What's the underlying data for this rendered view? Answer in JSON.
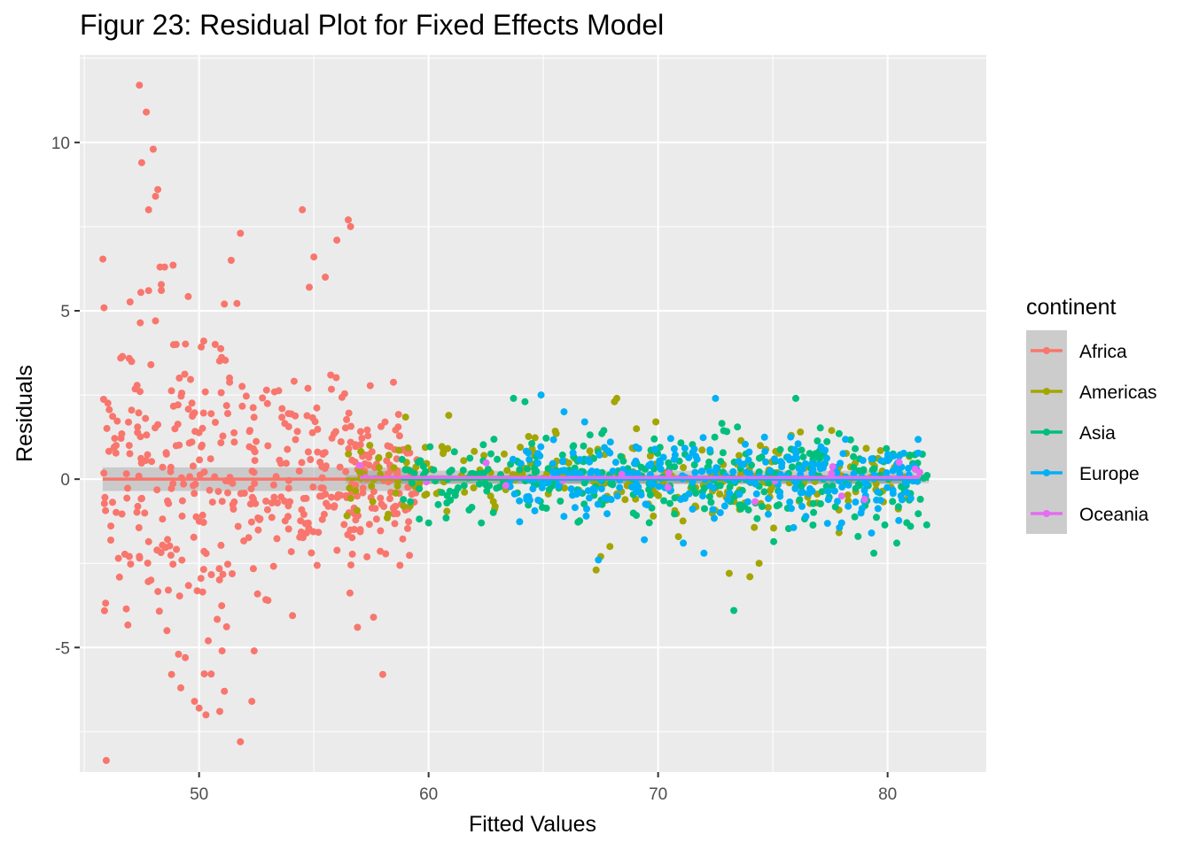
{
  "chart_data": {
    "type": "scatter",
    "title": "Figur 23: Residual Plot for Fixed Effects Model",
    "xlabel": "Fitted Values",
    "ylabel": "Residuals",
    "xlim": [
      44.8,
      84.3
    ],
    "ylim": [
      -8.7,
      12.6
    ],
    "x_ticks": [
      50,
      60,
      70,
      80
    ],
    "y_ticks": [
      -5,
      0,
      5,
      10
    ],
    "grid": true,
    "legend_position": "right",
    "legend_title": "continent",
    "smooth_lines": true,
    "series": [
      {
        "name": "Africa",
        "color": "#F8766D",
        "x_range": [
          45.8,
          59.5
        ],
        "extra_points": [
          [
            47.4,
            11.7
          ],
          [
            47.7,
            10.9
          ],
          [
            48.0,
            9.8
          ],
          [
            47.5,
            9.4
          ],
          [
            48.2,
            8.6
          ],
          [
            48.1,
            8.4
          ],
          [
            47.8,
            8.0
          ],
          [
            48.5,
            6.3
          ],
          [
            48.3,
            6.3
          ],
          [
            47.8,
            5.6
          ],
          [
            48.1,
            4.7
          ],
          [
            49.0,
            4.0
          ],
          [
            47.9,
            3.4
          ],
          [
            55.0,
            6.6
          ],
          [
            56.0,
            7.1
          ],
          [
            56.5,
            7.7
          ],
          [
            56.6,
            7.5
          ],
          [
            54.5,
            8.0
          ],
          [
            51.8,
            7.3
          ],
          [
            51.4,
            6.5
          ],
          [
            55.5,
            6.0
          ],
          [
            54.8,
            5.7
          ],
          [
            50.2,
            4.1
          ],
          [
            50.7,
            4.0
          ],
          [
            51.1,
            5.2
          ],
          [
            47.9,
            -3.0
          ],
          [
            48.6,
            -4.5
          ],
          [
            49.1,
            -5.2
          ],
          [
            49.4,
            -5.3
          ],
          [
            48.8,
            -5.8
          ],
          [
            49.2,
            -6.2
          ],
          [
            49.8,
            -6.6
          ],
          [
            50.0,
            -6.8
          ],
          [
            50.3,
            -7.0
          ],
          [
            50.9,
            -6.9
          ],
          [
            51.8,
            -7.8
          ],
          [
            52.3,
            -6.6
          ],
          [
            51.1,
            -6.3
          ],
          [
            52.4,
            -5.1
          ],
          [
            51.0,
            -5.1
          ],
          [
            50.4,
            -4.8
          ],
          [
            53.0,
            -3.6
          ],
          [
            56.9,
            -4.4
          ],
          [
            57.6,
            -4.1
          ],
          [
            58.0,
            -5.8
          ]
        ],
        "n_random": 460,
        "random_sd": 1.25
      },
      {
        "name": "Americas",
        "color": "#A3A500",
        "x_range": [
          56.4,
          81.0
        ],
        "extra_points": [
          [
            68.2,
            2.4
          ],
          [
            68.1,
            2.3
          ],
          [
            69.9,
            1.7
          ],
          [
            67.3,
            -2.7
          ],
          [
            67.5,
            -2.3
          ],
          [
            67.9,
            -2.0
          ],
          [
            73.1,
            -2.8
          ],
          [
            74.0,
            -2.9
          ],
          [
            74.4,
            -2.5
          ],
          [
            75.8,
            1.3
          ],
          [
            76.2,
            1.4
          ]
        ],
        "n_random": 280,
        "random_sd": 0.6
      },
      {
        "name": "Asia",
        "color": "#00BF7D",
        "x_range": [
          58.8,
          81.8
        ],
        "extra_points": [
          [
            73.3,
            -3.9
          ],
          [
            76.0,
            2.4
          ],
          [
            63.7,
            2.4
          ],
          [
            64.2,
            2.3
          ],
          [
            79.4,
            -2.2
          ],
          [
            80.4,
            -1.9
          ],
          [
            81.0,
            -1.4
          ],
          [
            60.0,
            -1.3
          ],
          [
            62.3,
            -1.3
          ]
        ],
        "n_random": 340,
        "random_sd": 0.65
      },
      {
        "name": "Europe",
        "color": "#00B0F6",
        "x_range": [
          63.5,
          81.4
        ],
        "extra_points": [
          [
            64.9,
            2.5
          ],
          [
            72.5,
            2.4
          ],
          [
            65.9,
            2.0
          ],
          [
            66.8,
            1.7
          ],
          [
            67.4,
            -2.4
          ],
          [
            69.4,
            -1.8
          ],
          [
            71.1,
            -1.9
          ],
          [
            72.0,
            -2.2
          ],
          [
            78.0,
            -1.3
          ],
          [
            79.3,
            -1.6
          ]
        ],
        "n_random": 300,
        "random_sd": 0.55
      },
      {
        "name": "Oceania",
        "color": "#E76BF3",
        "x_range": [
          57.0,
          81.4
        ],
        "extra_points": [
          [
            57.0,
            0.4
          ],
          [
            78.0,
            -0.5
          ],
          [
            79.0,
            -0.6
          ],
          [
            80.5,
            0.5
          ],
          [
            81.2,
            0.3
          ],
          [
            81.4,
            0.2
          ]
        ],
        "n_random": 12,
        "random_sd": 0.3
      }
    ],
    "smooth_fits": [
      {
        "name": "Africa",
        "color": "#F8766D",
        "x": [
          45.8,
          59.5
        ],
        "y": [
          0.0,
          0.0
        ],
        "se_band": 0.35
      },
      {
        "name": "Americas",
        "color": "#A3A500",
        "x": [
          56.4,
          81.0
        ],
        "y": [
          0.0,
          0.0
        ],
        "se_band": 0.12
      },
      {
        "name": "Asia",
        "color": "#00BF7D",
        "x": [
          58.8,
          81.8
        ],
        "y": [
          0.0,
          0.0
        ],
        "se_band": 0.12
      },
      {
        "name": "Europe",
        "color": "#00B0F6",
        "x": [
          63.5,
          81.4
        ],
        "y": [
          0.0,
          0.0
        ],
        "se_band": 0.12
      },
      {
        "name": "Oceania",
        "color": "#E76BF3",
        "x": [
          57.0,
          81.4
        ],
        "y": [
          0.05,
          0.05
        ],
        "se_band": 0.2
      }
    ]
  }
}
